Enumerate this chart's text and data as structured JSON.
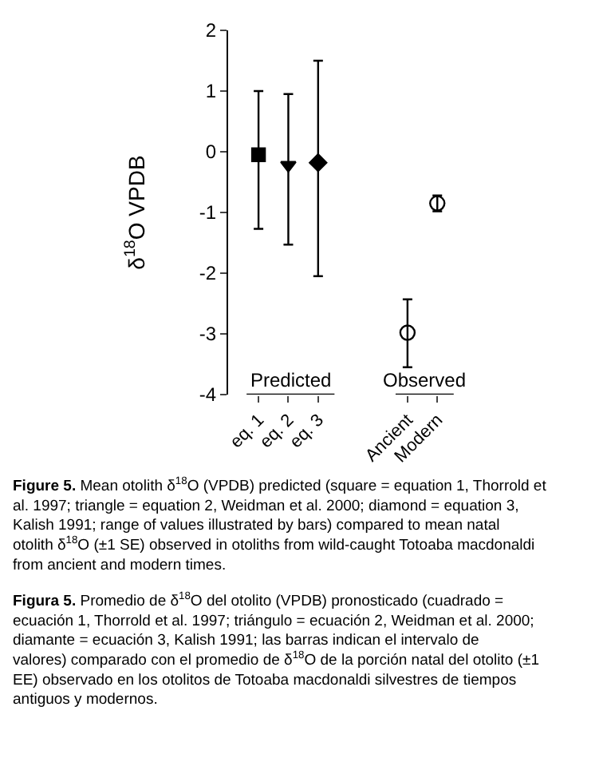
{
  "chart_data": {
    "type": "scatter",
    "ylabel": "δ$^{18}$O VPDB",
    "categories": [
      "eq. 1",
      "eq. 2",
      "eq. 3",
      null,
      null,
      "Ancient",
      "Modern"
    ],
    "series": [
      {
        "color": "#000000",
        "marker": "square",
        "values": [
          -0.05,
          null,
          null,
          null,
          null,
          null,
          null
        ],
        "errors": [
          [
            -1.27,
            1.0
          ],
          null,
          null,
          null,
          null,
          null,
          null
        ]
      },
      {
        "color": "#000000",
        "marker": "triangle",
        "values": [
          null,
          -0.22,
          null,
          null,
          null,
          null,
          null
        ],
        "errors": [
          null,
          [
            -1.53,
            0.95
          ],
          null,
          null,
          null,
          null,
          null
        ]
      },
      {
        "color": "#000000",
        "marker": "diamond",
        "values": [
          null,
          null,
          -0.18,
          null,
          null,
          null,
          null
        ],
        "errors": [
          null,
          null,
          [
            -2.05,
            1.5
          ],
          null,
          null,
          null,
          null
        ]
      },
      {
        "color": "#000000",
        "marker": "circle",
        "values": [
          null,
          null,
          null,
          null,
          null,
          -2.98,
          -0.85
        ],
        "errors": [
          null,
          null,
          null,
          null,
          null,
          [
            -3.55,
            -2.43
          ],
          [
            -0.98,
            -0.72
          ]
        ]
      }
    ],
    "ylim": [
      -4,
      2
    ],
    "yticks": [
      -4,
      -3,
      -2,
      -1,
      0,
      1,
      2
    ],
    "annotations": [
      "Predicted",
      "Observed",
      "Figure 5. Mean otolith δ$^{18}$O (VPDB) predicted (square = equation 1, Thorrold et al. 1997; triangle = equation 2, Weidman et al. 2000; diamond = equation 3, Kalish 1991; range of values illustrated by bars) compared to mean natal otolith δ$^{18}$O (±1 SE) observed in otoliths from wild-caught Totoaba macdonaldi from ancient and modern times.",
      "Figura 5. Promedio de δ$^{18}$O del otolito (VPDB) pronosticado (cuadrado = ecuación 1, Thorrold et al. 1997; triángulo = ecuación 2, Weidman et al. 2000; diamante = ecuación 3, Kalish 1991; las barras indican el intervalo de valores) comparado con el promedio de δ$^{18}$O de la porción natal del otolito (±1 EE) observado en los otolitos de Totoaba macdonaldi silvestres de tiempos antiguos y modernos."
    ]
  }
}
